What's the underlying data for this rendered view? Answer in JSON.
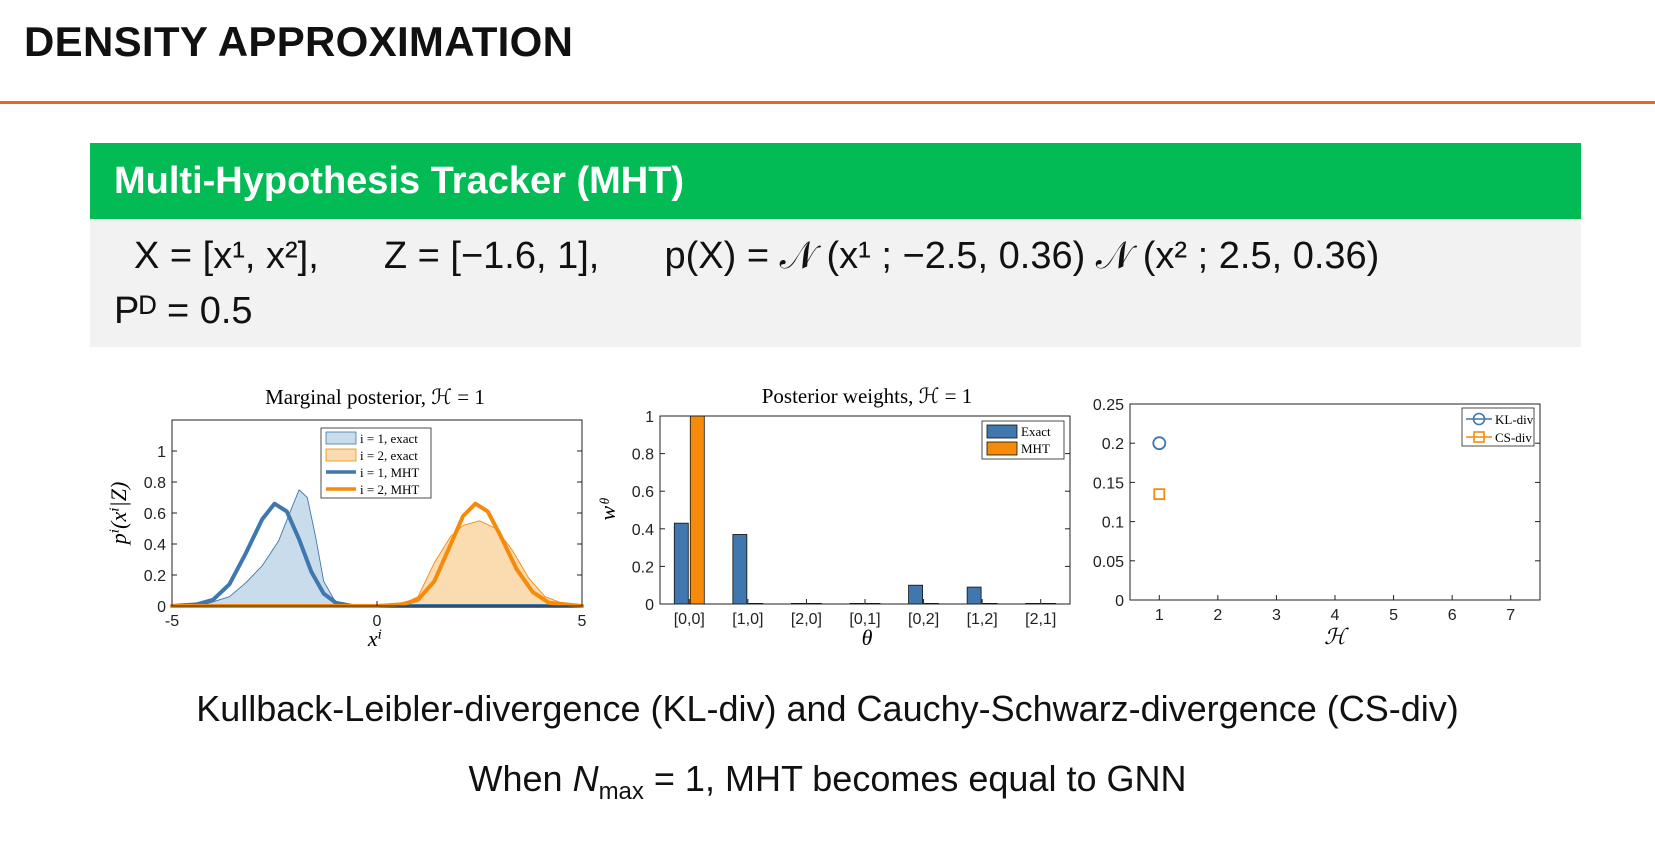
{
  "slide": {
    "title": "DENSITY APPROXIMATION"
  },
  "block": {
    "heading": "Multi-Hypothesis Tracker (MHT)",
    "eq_X": "X = [x¹, x²],",
    "eq_Z": "Z = [−1.6, 1],",
    "eq_pX": "p(X) = 𝒩 (x¹ ; −2.5, 0.36) 𝒩 (x² ; 2.5, 0.36)",
    "eq_PD": "Pᴰ = 0.5"
  },
  "captions": {
    "line1": "Kullback-Leibler-divergence (KL-div) and Cauchy-Schwarz-divergence (CS-div)",
    "line2_prefix": "When ",
    "line2_sub": "max",
    "line2_suffix": " = 1, MHT becomes equal to GNN"
  },
  "colors": {
    "accent_rule": "#e8661f",
    "block_header": "#02bb55",
    "blue": "#3f77ae",
    "blue_fill": "#c9dcec",
    "orange": "#f58a0b",
    "orange_fill": "#fbdcb0"
  },
  "chart_data": [
    {
      "type": "area",
      "title": "Marginal posterior, ℋ = 1",
      "xlabel": "xⁱ",
      "ylabel": "pⁱ(xⁱ|Z)",
      "xlim": [
        -5,
        5
      ],
      "ylim": [
        0,
        1.2
      ],
      "x_ticks": [
        "-5",
        "0",
        "5"
      ],
      "y_ticks": [
        "0",
        "0.2",
        "0.4",
        "0.6",
        "0.8",
        "1"
      ],
      "legend_position": "top-center",
      "series": [
        {
          "name": "i = 1, exact",
          "style": "filled-area",
          "color": "blue",
          "x": [
            -5,
            -4.2,
            -3.6,
            -3.2,
            -2.8,
            -2.4,
            -2.1,
            -1.9,
            -1.7,
            -1.5,
            -1.3,
            -1.0,
            -0.6,
            0,
            5
          ],
          "y": [
            0,
            0.01,
            0.06,
            0.15,
            0.26,
            0.42,
            0.62,
            0.75,
            0.7,
            0.45,
            0.16,
            0.02,
            0,
            0,
            0
          ]
        },
        {
          "name": "i = 2, exact",
          "style": "filled-area",
          "color": "orange",
          "x": [
            -5,
            0,
            0.6,
            1.0,
            1.4,
            1.8,
            2.1,
            2.5,
            2.9,
            3.3,
            3.7,
            4.1,
            4.6,
            5
          ],
          "y": [
            0,
            0,
            0.01,
            0.06,
            0.28,
            0.45,
            0.52,
            0.55,
            0.5,
            0.36,
            0.18,
            0.06,
            0.01,
            0
          ]
        },
        {
          "name": "i = 1, MHT",
          "style": "line",
          "color": "blue",
          "x": [
            -5,
            -4.4,
            -4.0,
            -3.6,
            -3.2,
            -2.8,
            -2.5,
            -2.2,
            -1.9,
            -1.6,
            -1.3,
            -1.0,
            -0.6,
            0,
            5
          ],
          "y": [
            0,
            0.01,
            0.04,
            0.14,
            0.34,
            0.56,
            0.66,
            0.61,
            0.43,
            0.22,
            0.08,
            0.02,
            0,
            0,
            0
          ]
        },
        {
          "name": "i = 2, MHT",
          "style": "line",
          "color": "orange",
          "x": [
            -5,
            0,
            0.6,
            1.0,
            1.4,
            1.8,
            2.1,
            2.4,
            2.7,
            3.0,
            3.4,
            3.8,
            4.2,
            4.6,
            5
          ],
          "y": [
            0,
            0,
            0.01,
            0.04,
            0.16,
            0.4,
            0.58,
            0.66,
            0.61,
            0.46,
            0.24,
            0.09,
            0.02,
            0.01,
            0
          ]
        }
      ]
    },
    {
      "type": "bar",
      "title": "Posterior weights, ℋ = 1",
      "xlabel": "θ",
      "ylabel": "wᶿ",
      "ylim": [
        0,
        1
      ],
      "y_ticks": [
        "0",
        "0.2",
        "0.4",
        "0.6",
        "0.8",
        "1"
      ],
      "categories": [
        "[0,0]",
        "[1,0]",
        "[2,0]",
        "[0,1]",
        "[0,2]",
        "[1,2]",
        "[2,1]"
      ],
      "legend_position": "top-right",
      "series": [
        {
          "name": "Exact",
          "color": "blue",
          "values": [
            0.43,
            0.37,
            0,
            0,
            0.1,
            0.09,
            0
          ]
        },
        {
          "name": "MHT",
          "color": "orange",
          "values": [
            1.0,
            0,
            0,
            0,
            0,
            0,
            0
          ]
        }
      ]
    },
    {
      "type": "scatter",
      "title": "",
      "xlabel": "ℋ",
      "ylabel": "",
      "xlim": [
        0.5,
        7.5
      ],
      "ylim": [
        0,
        0.25
      ],
      "x_ticks": [
        "1",
        "2",
        "3",
        "4",
        "5",
        "6",
        "7"
      ],
      "y_ticks": [
        "0",
        "0.05",
        "0.1",
        "0.15",
        "0.2",
        "0.25"
      ],
      "legend_position": "top-right",
      "series": [
        {
          "name": "KL-div",
          "marker": "circle",
          "color": "blue",
          "x": [
            1
          ],
          "y": [
            0.2
          ]
        },
        {
          "name": "CS-div",
          "marker": "square",
          "color": "orange",
          "x": [
            1
          ],
          "y": [
            0.135
          ]
        }
      ]
    }
  ]
}
